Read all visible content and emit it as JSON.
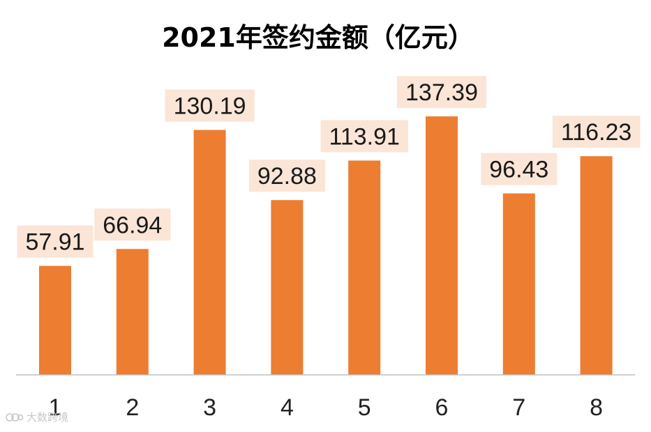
{
  "chart_data": {
    "type": "bar",
    "title": "2021年签约金额（亿元）",
    "categories": [
      "1",
      "2",
      "3",
      "4",
      "5",
      "6",
      "7",
      "8"
    ],
    "values": [
      57.91,
      66.94,
      130.19,
      92.88,
      113.91,
      137.39,
      96.43,
      116.23
    ],
    "xlabel": "",
    "ylabel": "",
    "ylim": [
      0,
      155
    ],
    "grid": false,
    "legend": "none",
    "data_labels": true,
    "bar_color": "#ED7D31",
    "label_bg_color": "#FBE5D6",
    "axis_color": "#BFBFBF"
  },
  "watermark": {
    "text": "大数跨境"
  }
}
